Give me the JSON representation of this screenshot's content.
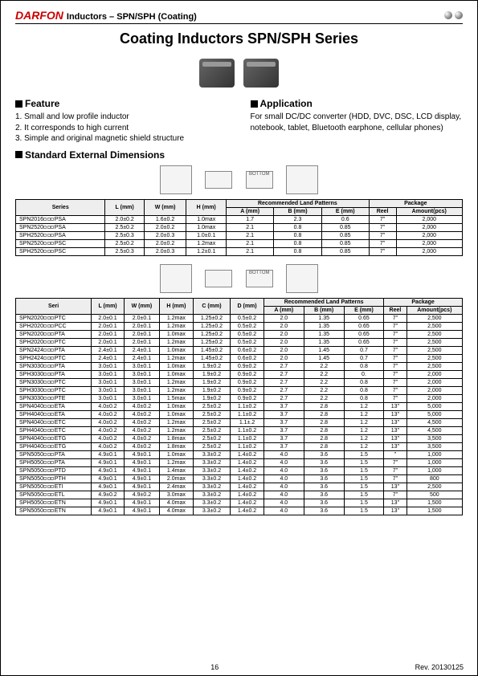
{
  "header": {
    "logo": "DARFON",
    "title": "Inductors – SPN/SPH (Coating)"
  },
  "title": "Coating Inductors SPN/SPH Series",
  "feature": {
    "heading": "Feature",
    "items": [
      "1. Small and low profile inductor",
      "2. It corresponds to high current",
      "3. Simple and original magnetic shield structure"
    ]
  },
  "application": {
    "heading": "Application",
    "text": "For small DC/DC converter (HDD, DVC, DSC, LCD display, notebook, tablet, Bluetooth earphone, cellular phones)"
  },
  "std_dims_heading": "Standard External Dimensions",
  "table1": {
    "columns": {
      "series": "Series",
      "l": "L\n(mm)",
      "w": "W\n(mm)",
      "h": "H\n(mm)",
      "rec": "Recommended Land Patterns",
      "a": "A\n(mm)",
      "b": "B\n(mm)",
      "e": "E\n(mm)",
      "pkg": "Package",
      "reel": "Reel",
      "amt": "Amount(pcs)"
    },
    "rows": [
      {
        "series": "SPN2016",
        "suf": "PSA",
        "l": "2.0±0.2",
        "w": "1.6±0.2",
        "h": "1.0max",
        "a": "1.7",
        "b": "2.3",
        "e": "0.6",
        "reel": "7\"",
        "amt": "2,000"
      },
      {
        "series": "SPN2520",
        "suf": "PSA",
        "l": "2.5±0.2",
        "w": "2.0±0.2",
        "h": "1.0max",
        "a": "2.1",
        "b": "0.8",
        "e": "0.85",
        "reel": "7\"",
        "amt": "2,000"
      },
      {
        "series": "SPH2520",
        "suf": "PSA",
        "l": "2.5±0.3",
        "w": "2.0±0.3",
        "h": "1.0±0.1",
        "a": "2.1",
        "b": "0.8",
        "e": "0.85",
        "reel": "7\"",
        "amt": "2,000"
      },
      {
        "series": "SPN2520",
        "suf": "PSC",
        "l": "2.5±0.2",
        "w": "2.0±0.2",
        "h": "1.2max",
        "a": "2.1",
        "b": "0.8",
        "e": "0.85",
        "reel": "7\"",
        "amt": "2,000"
      },
      {
        "series": "SPH2520",
        "suf": "PSC",
        "l": "2.5±0.3",
        "w": "2.0±0.3",
        "h": "1.2±0.1",
        "a": "2.1",
        "b": "0.8",
        "e": "0.85",
        "reel": "7\"",
        "amt": "2,000"
      }
    ]
  },
  "table2": {
    "columns": {
      "seri": "Seri",
      "l": "L\n(mm)",
      "w": "W\n(mm)",
      "h": "H\n(mm)",
      "c": "C\n(mm)",
      "d": "D\n(mm)",
      "rec": "Recommended Land\nPatterns",
      "a": "A\n(mm)",
      "b": "B\n(mm)",
      "e": "E\n(mm)",
      "pkg": "Package",
      "reel": "Reel",
      "amt": "Amount(pcs)"
    },
    "rows": [
      {
        "s": "SPN2020",
        "suf": "PTC",
        "l": "2.0±0.1",
        "w": "2.0±0.1",
        "h": "1.2max",
        "c": "1.25±0.2",
        "d": "0.5±0.2",
        "a": "2.0",
        "b": "1.35",
        "e": "0.65",
        "r": "7\"",
        "amt": "2,500"
      },
      {
        "s": "SPH2020",
        "suf": "PCC",
        "l": "2.0±0.1",
        "w": "2.0±0.1",
        "h": "1.2max",
        "c": "1.25±0.2",
        "d": "0.5±0.2",
        "a": "2.0",
        "b": "1.35",
        "e": "0.65",
        "r": "7\"",
        "amt": "2,500"
      },
      {
        "s": "SPN2020",
        "suf": "PTA",
        "l": "2.0±0.1",
        "w": "2.0±0.1",
        "h": "1.0max",
        "c": "1.25±0.2",
        "d": "0.5±0.2",
        "a": "2.0",
        "b": "1.35",
        "e": "0.65",
        "r": "7\"",
        "amt": "2,500"
      },
      {
        "s": "SPH2020",
        "suf": "PTC",
        "l": "2.0±0.1",
        "w": "2.0±0.1",
        "h": "1.2max",
        "c": "1.25±0.2",
        "d": "0.5±0.2",
        "a": "2.0",
        "b": "1.35",
        "e": "0.65",
        "r": "7\"",
        "amt": "2,500"
      },
      {
        "s": "SPN2424",
        "suf": "PTA",
        "l": "2.4±0.1",
        "w": "2.4±0.1",
        "h": "1.0max",
        "c": "1.45±0.2",
        "d": "0.6±0.2",
        "a": "2.0",
        "b": "1.45",
        "e": "0.7",
        "r": "7\"",
        "amt": "2,500"
      },
      {
        "s": "SPH2424",
        "suf": "PTC",
        "l": "2.4±0.1",
        "w": "2.4±0.1",
        "h": "1.2max",
        "c": "1.45±0.2",
        "d": "0.6±0.2",
        "a": "2.0",
        "b": "1.45",
        "e": "0.7",
        "r": "7\"",
        "amt": "2,500"
      },
      {
        "s": "SPN3030",
        "suf": "PTA",
        "l": "3.0±0.1",
        "w": "3.0±0.1",
        "h": "1.0max",
        "c": "1.9±0.2",
        "d": "0.9±0.2",
        "a": "2.7",
        "b": "2.2",
        "e": "0.8",
        "r": "7\"",
        "amt": "2,500"
      },
      {
        "s": "SPH3030",
        "suf": "PTA",
        "l": "3.0±0.1",
        "w": "3.0±0.1",
        "h": "1.0max",
        "c": "1.9±0.2",
        "d": "0.9±0.2",
        "a": "2.7",
        "b": "2.2",
        "e": "0.",
        "r": "7\"",
        "amt": "2,000"
      },
      {
        "s": "SPN3030",
        "suf": "PTC",
        "l": "3.0±0.1",
        "w": "3.0±0.1",
        "h": "1.2max",
        "c": "1.9±0.2",
        "d": "0.9±0.2",
        "a": "2.7",
        "b": "2.2",
        "e": "0.8",
        "r": "7\"",
        "amt": "2,000"
      },
      {
        "s": "SPH3030",
        "suf": "PTC",
        "l": "3.0±0.1",
        "w": "3.0±0.1",
        "h": "1.2max",
        "c": "1.9±0.2",
        "d": "0.9±0.2",
        "a": "2.7",
        "b": "2.2",
        "e": "0.8",
        "r": "7\"",
        "amt": "2,000"
      },
      {
        "s": "SPN3030",
        "suf": "PTE",
        "l": "3.0±0.1",
        "w": "3.0±0.1",
        "h": "1.5max",
        "c": "1.9±0.2",
        "d": "0.9±0.2",
        "a": "2.7",
        "b": "2.2",
        "e": "0.8",
        "r": "7\"",
        "amt": "2,000"
      },
      {
        "s": "SPN4040",
        "suf": "ETA",
        "l": "4.0±0.2",
        "w": "4.0±0.2",
        "h": "1.0max",
        "c": "2.5±0.2",
        "d": "1.1±0.2",
        "a": "3.7",
        "b": "2.8",
        "e": "1.2",
        "r": "13\"",
        "amt": "5,000"
      },
      {
        "s": "SPH4040",
        "suf": "ETA",
        "l": "4.0±0.2",
        "w": "4.0±0.2",
        "h": "1.0max",
        "c": "2.5±0.2",
        "d": "1.1±0.2",
        "a": "3.7",
        "b": "2.8",
        "e": "1.2",
        "r": "13\"",
        "amt": "5,000"
      },
      {
        "s": "SPN4040",
        "suf": "ETC",
        "l": "4.0±0.2",
        "w": "4.0±0.2",
        "h": "1.2max",
        "c": "2.5±0.2",
        "d": "1.1±.2",
        "a": "3.7",
        "b": "2.8",
        "e": "1.2",
        "r": "13\"",
        "amt": "4,500"
      },
      {
        "s": "SPH4040",
        "suf": "ETC",
        "l": "4.0±0.2",
        "w": "4.0±0.2",
        "h": "1.2max",
        "c": "2.5±0.2",
        "d": "1.1±0.2",
        "a": "3.7",
        "b": "2.8",
        "e": "1.2",
        "r": "13\"",
        "amt": "4,500"
      },
      {
        "s": "SPN4040",
        "suf": "ETG",
        "l": "4.0±0.2",
        "w": "4.0±0.2",
        "h": "1.8max",
        "c": "2.5±0.2",
        "d": "1.1±0.2",
        "a": "3.7",
        "b": "2.8",
        "e": "1.2",
        "r": "13\"",
        "amt": "3,500"
      },
      {
        "s": "SPH4040",
        "suf": "ETG",
        "l": "4.0±0.2",
        "w": "4.0±0.2",
        "h": "1.8max",
        "c": "2.5±0.2",
        "d": "1.1±0.2",
        "a": "3.7",
        "b": "2.8",
        "e": "1.2",
        "r": "13\"",
        "amt": "3,500"
      },
      {
        "s": "SPN5050",
        "suf": "PTA",
        "l": "4.9±0.1",
        "w": "4.9±0.1",
        "h": "1.0max",
        "c": "3.3±0.2",
        "d": "1.4±0.2",
        "a": "4.0",
        "b": "3.6",
        "e": "1.5",
        "r": "\"",
        "amt": "1,000"
      },
      {
        "s": "SPH5050",
        "suf": "PTA",
        "l": "4.9±0.1",
        "w": "4.9±0.1",
        "h": "1.2max",
        "c": "3.3±0.2",
        "d": "1.4±0.2",
        "a": "4.0",
        "b": "3.6",
        "e": "1.5",
        "r": "7\"",
        "amt": "1,000"
      },
      {
        "s": "SPN5050",
        "suf": "PTD",
        "l": "4.9±0.1",
        "w": "4.9±0.1",
        "h": "1.4max",
        "c": "3.3±0.2",
        "d": "1.4±0.2",
        "a": "4.0",
        "b": "3.6",
        "e": "1.5",
        "r": "7\"",
        "amt": "1,000"
      },
      {
        "s": "SPN5050",
        "suf": "PTH",
        "l": "4.9±0.1",
        "w": "4.9±0.1",
        "h": "2.0max",
        "c": "3.3±0.2",
        "d": "1.4±0.2",
        "a": "4.0",
        "b": "3.6",
        "e": "1.5",
        "r": "7\"",
        "amt": "800"
      },
      {
        "s": "SPN5050",
        "suf": "ETI",
        "l": "4.9±0.1",
        "w": "4.9±0.1",
        "h": "2.4max",
        "c": "3.3±0.2",
        "d": "1.4±0.2",
        "a": "4.0",
        "b": "3.6",
        "e": "1.5",
        "r": "13\"",
        "amt": "2,500"
      },
      {
        "s": "SPN5050",
        "suf": "ETL",
        "l": "4.9±0.2",
        "w": "4.9±0.2",
        "h": "3.0max",
        "c": "3.3±0.2",
        "d": "1.4±0.2",
        "a": "4.0",
        "b": "3.6",
        "e": "1.5",
        "r": "7\"",
        "amt": "500"
      },
      {
        "s": "SPH5050",
        "suf": "ETN",
        "l": "4.9±0.1",
        "w": "4.9±0.1",
        "h": "4.0max",
        "c": "3.3±0.2",
        "d": "1.4±0.2",
        "a": "4.0",
        "b": "3.6",
        "e": "1.5",
        "r": "13\"",
        "amt": "1,500"
      },
      {
        "s": "SPN5050",
        "suf": "ETN",
        "l": "4.9±0.1",
        "w": "4.9±0.1",
        "h": "4.0max",
        "c": "3.3±0.2",
        "d": "1.4±0.2",
        "a": "4.0",
        "b": "3.6",
        "e": "1.5",
        "r": "13\"",
        "amt": "1,500"
      }
    ]
  },
  "footer": {
    "page": "16",
    "rev": "Rev. 20130125"
  }
}
